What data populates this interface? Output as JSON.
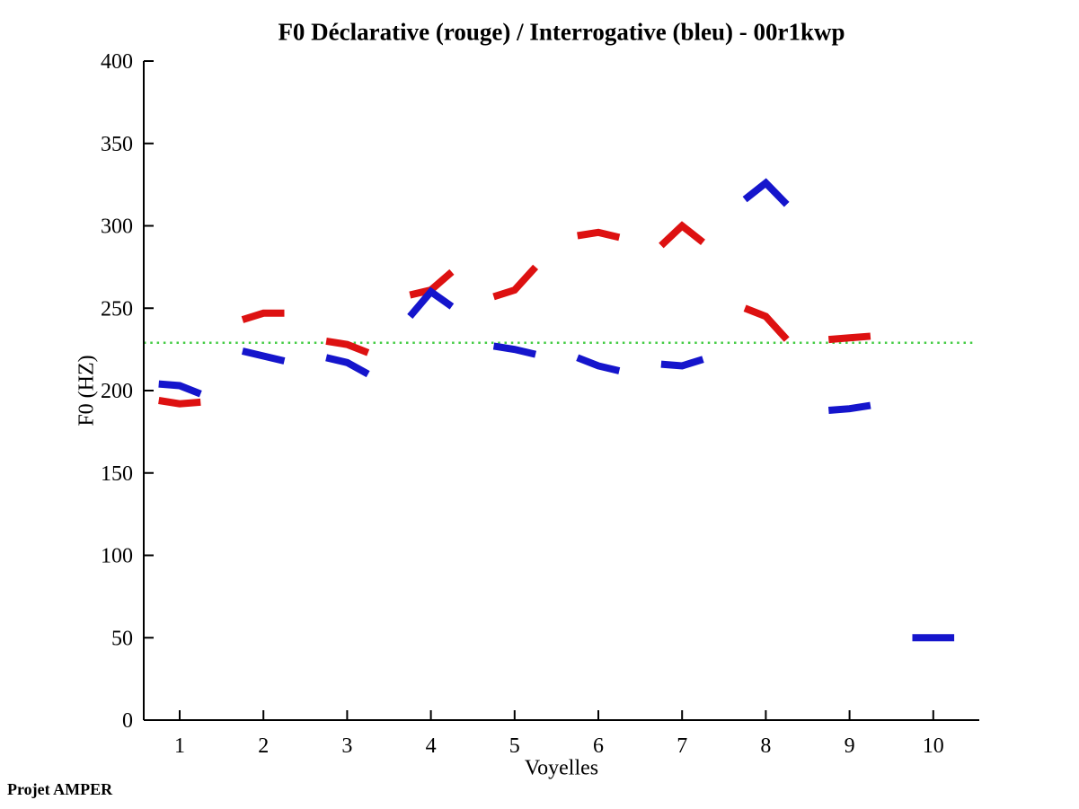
{
  "footer": "Projet AMPER",
  "chart_data": {
    "type": "line",
    "title": "F0 Déclarative (rouge) / Interrogative (bleu) - 00r1kwp",
    "xlabel": "Voyelles",
    "ylabel": "F0 (HZ)",
    "ylim": [
      0,
      400
    ],
    "yticks": [
      0,
      50,
      100,
      150,
      200,
      250,
      300,
      350,
      400
    ],
    "xticks": [
      1,
      2,
      3,
      4,
      5,
      6,
      7,
      8,
      9,
      10
    ],
    "grid": "off",
    "legend": "none (colors explained in title)",
    "axis_color": "#000000",
    "reference_line": {
      "y": 229,
      "color": "#44cc44",
      "style": "dotted"
    },
    "segment_x_offsets": [
      -0.25,
      0,
      0.25
    ],
    "series": [
      {
        "name": "Déclarative (rouge)",
        "color": "#dd1111",
        "segments": [
          {
            "x": 1,
            "y": [
              194,
              192,
              193
            ]
          },
          {
            "x": 2,
            "y": [
              243,
              247,
              247
            ]
          },
          {
            "x": 3,
            "y": [
              230,
              228,
              223
            ]
          },
          {
            "x": 4,
            "y": [
              258,
              261,
              272
            ]
          },
          {
            "x": 5,
            "y": [
              257,
              261,
              275
            ]
          },
          {
            "x": 6,
            "y": [
              294,
              296,
              293
            ]
          },
          {
            "x": 7,
            "y": [
              288,
              300,
              290
            ]
          },
          {
            "x": 8,
            "y": [
              250,
              245,
              231
            ]
          },
          {
            "x": 9,
            "y": [
              231,
              232,
              233
            ]
          }
        ]
      },
      {
        "name": "Interrogative (bleu)",
        "color": "#1515cc",
        "segments": [
          {
            "x": 1,
            "y": [
              204,
              203,
              198
            ]
          },
          {
            "x": 2,
            "y": [
              224,
              221,
              218
            ]
          },
          {
            "x": 3,
            "y": [
              220,
              217,
              210
            ]
          },
          {
            "x": 4,
            "y": [
              245,
              260,
              251
            ]
          },
          {
            "x": 5,
            "y": [
              227,
              225,
              222
            ]
          },
          {
            "x": 6,
            "y": [
              220,
              215,
              212
            ]
          },
          {
            "x": 7,
            "y": [
              216,
              215,
              219
            ]
          },
          {
            "x": 8,
            "y": [
              316,
              326,
              313
            ]
          },
          {
            "x": 9,
            "y": [
              188,
              189,
              191
            ]
          },
          {
            "x": 10,
            "y": [
              50,
              50,
              50
            ]
          }
        ]
      }
    ]
  }
}
